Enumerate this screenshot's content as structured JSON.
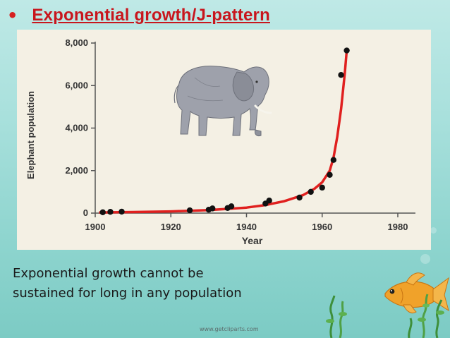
{
  "slide": {
    "bullet": "•",
    "title": "Exponential growth/J-pattern",
    "caption_line1": "Exponential growth cannot be",
    "caption_line2": "sustained for long in any population",
    "credit": "www.getcliparts.com"
  },
  "colors": {
    "title": "#c8161d",
    "curve": "#e0201f",
    "points": "#111111",
    "panel": "#f4f0e4"
  },
  "icons": [
    "elephant-illustration",
    "goldfish-illustration",
    "seaweed-illustration"
  ],
  "chart_data": {
    "type": "scatter",
    "title": "",
    "xlabel": "Year",
    "ylabel": "Elephant population",
    "xlim": [
      1900,
      1980
    ],
    "ylim": [
      0,
      8000
    ],
    "xticks": [
      1900,
      1920,
      1940,
      1960,
      1980
    ],
    "yticks": [
      0,
      2000,
      4000,
      6000,
      8000
    ],
    "ytick_labels": [
      "0",
      "2,000",
      "4,000",
      "6,000",
      "8,000"
    ],
    "grid": false,
    "series": [
      {
        "kind": "points",
        "x": [
          1902,
          1904,
          1907,
          1925,
          1930,
          1931,
          1935,
          1936,
          1945,
          1946,
          1954,
          1957,
          1960,
          1962,
          1963,
          1965,
          1966.5
        ],
        "y": [
          40,
          60,
          70,
          130,
          160,
          220,
          240,
          320,
          450,
          590,
          730,
          1000,
          1200,
          1800,
          2500,
          6500,
          7650
        ]
      },
      {
        "kind": "curve",
        "x": [
          1901,
          1910,
          1920,
          1930,
          1940,
          1945,
          1950,
          1955,
          1958,
          1960,
          1962,
          1963,
          1964,
          1965,
          1966,
          1966.5
        ],
        "y": [
          30,
          50,
          80,
          140,
          260,
          380,
          560,
          850,
          1150,
          1450,
          2000,
          2600,
          3600,
          4900,
          6600,
          7650
        ]
      }
    ]
  }
}
